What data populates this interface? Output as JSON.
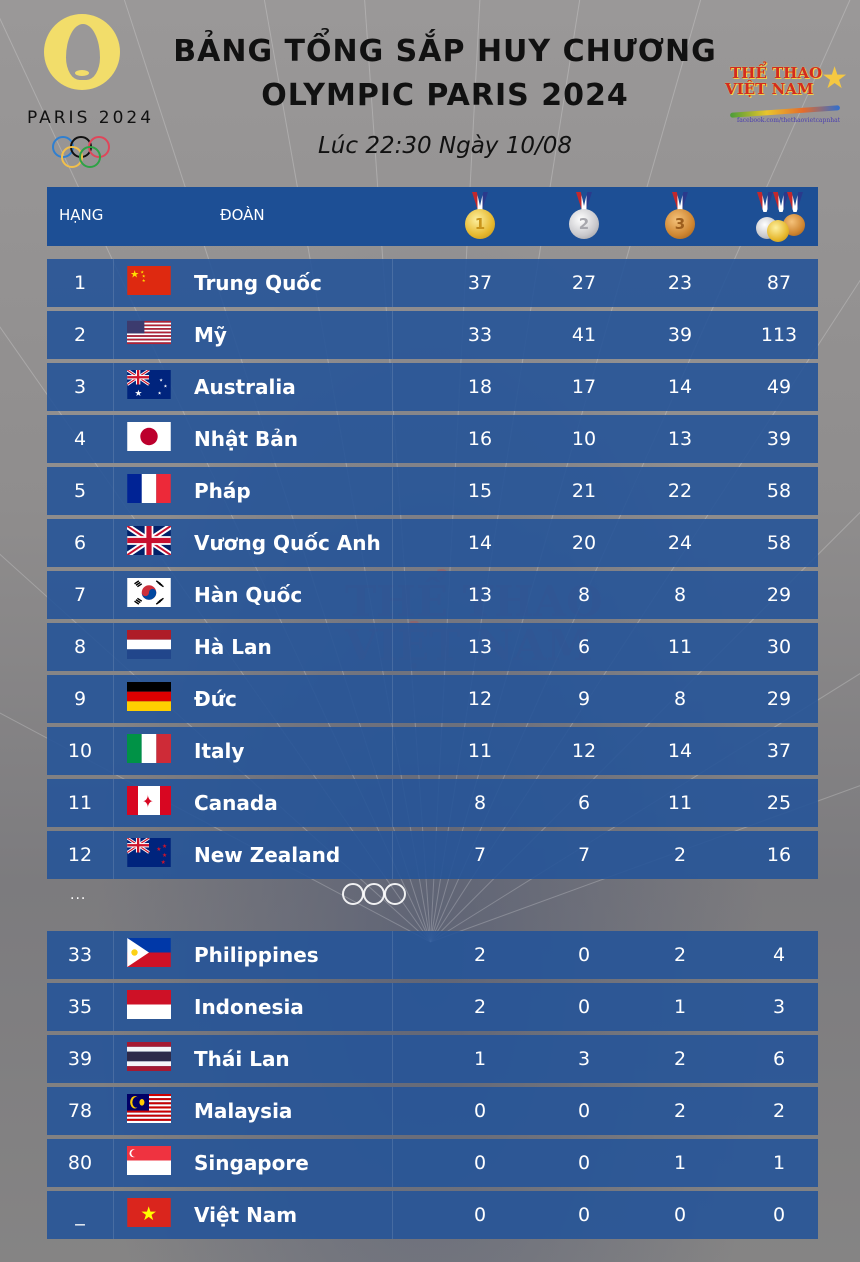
{
  "header": {
    "logo_text": "PARIS 2024",
    "title_line1": "BẢNG TỔNG SẮP HUY CHƯƠNG",
    "title_line2": "OLYMPIC PARIS 2024",
    "subtitle": "Lúc 22:30 Ngày 10/08",
    "brand": {
      "line1": "THỂ THAO",
      "line2": "VIỆT NAM",
      "url": "facebook.com/thethaovietcapnhat"
    }
  },
  "table": {
    "columns": {
      "rank": "HẠNG",
      "team": "ĐOÀN",
      "gold_icon": "gold-medal-icon",
      "silver_icon": "silver-medal-icon",
      "bronze_icon": "bronze-medal-icon",
      "total_icon": "all-medals-icon"
    },
    "top_rows": [
      {
        "rank": "1",
        "team": "Trung Quốc",
        "flag": "china",
        "gold": "37",
        "silver": "27",
        "bronze": "23",
        "total": "87"
      },
      {
        "rank": "2",
        "team": "Mỹ",
        "flag": "usa",
        "gold": "33",
        "silver": "41",
        "bronze": "39",
        "total": "113"
      },
      {
        "rank": "3",
        "team": "Australia",
        "flag": "australia",
        "gold": "18",
        "silver": "17",
        "bronze": "14",
        "total": "49"
      },
      {
        "rank": "4",
        "team": "Nhật Bản",
        "flag": "japan",
        "gold": "16",
        "silver": "10",
        "bronze": "13",
        "total": "39"
      },
      {
        "rank": "5",
        "team": "Pháp",
        "flag": "france",
        "gold": "15",
        "silver": "21",
        "bronze": "22",
        "total": "58"
      },
      {
        "rank": "6",
        "team": "Vương Quốc Anh",
        "flag": "uk",
        "gold": "14",
        "silver": "20",
        "bronze": "24",
        "total": "58"
      },
      {
        "rank": "7",
        "team": "Hàn Quốc",
        "flag": "korea",
        "gold": "13",
        "silver": "8",
        "bronze": "8",
        "total": "29"
      },
      {
        "rank": "8",
        "team": "Hà Lan",
        "flag": "netherlands",
        "gold": "13",
        "silver": "6",
        "bronze": "11",
        "total": "30"
      },
      {
        "rank": "9",
        "team": "Đức",
        "flag": "germany",
        "gold": "12",
        "silver": "9",
        "bronze": "8",
        "total": "29"
      },
      {
        "rank": "10",
        "team": "Italy",
        "flag": "italy",
        "gold": "11",
        "silver": "12",
        "bronze": "14",
        "total": "37"
      },
      {
        "rank": "11",
        "team": "Canada",
        "flag": "canada",
        "gold": "8",
        "silver": "6",
        "bronze": "11",
        "total": "25"
      },
      {
        "rank": "12",
        "team": "New Zealand",
        "flag": "new-zealand",
        "gold": "7",
        "silver": "7",
        "bronze": "2",
        "total": "16"
      }
    ],
    "ellipsis": "...",
    "sea_rows": [
      {
        "rank": "33",
        "team": "Philippines",
        "flag": "philippines",
        "gold": "2",
        "silver": "0",
        "bronze": "2",
        "total": "4"
      },
      {
        "rank": "35",
        "team": "Indonesia",
        "flag": "indonesia",
        "gold": "2",
        "silver": "0",
        "bronze": "1",
        "total": "3"
      },
      {
        "rank": "39",
        "team": "Thái Lan",
        "flag": "thailand",
        "gold": "1",
        "silver": "3",
        "bronze": "2",
        "total": "6"
      },
      {
        "rank": "78",
        "team": "Malaysia",
        "flag": "malaysia",
        "gold": "0",
        "silver": "0",
        "bronze": "2",
        "total": "2"
      },
      {
        "rank": "80",
        "team": "Singapore",
        "flag": "singapore",
        "gold": "0",
        "silver": "0",
        "bronze": "1",
        "total": "1"
      },
      {
        "rank": "_",
        "team": "Việt Nam",
        "flag": "vietnam",
        "gold": "0",
        "silver": "0",
        "bronze": "0",
        "total": "0"
      }
    ]
  },
  "colors": {
    "header_band": "#1d4f95",
    "row_band": "#2b5797",
    "title_text": "#111111",
    "background": "#939191"
  }
}
